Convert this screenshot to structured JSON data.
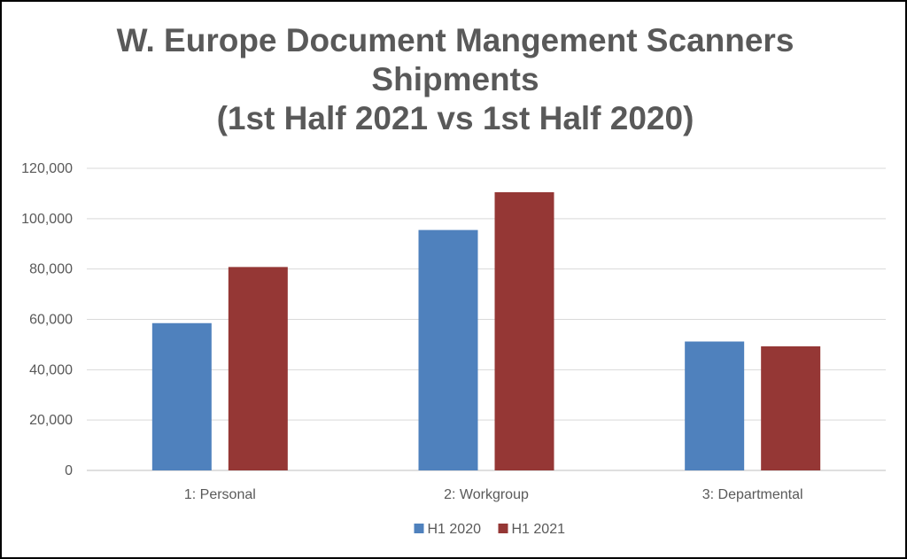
{
  "chart_data": {
    "type": "bar",
    "title_lines": [
      "W. Europe Document Mangement Scanners",
      "Shipments",
      "(1st Half 2021 vs 1st Half 2020)"
    ],
    "categories": [
      "1: Personal",
      "2: Workgroup",
      "3: Departmental"
    ],
    "series": [
      {
        "name": "H1 2020",
        "values": [
          58500,
          95500,
          51200
        ],
        "color": "#4F81BD"
      },
      {
        "name": "H1 2021",
        "values": [
          80800,
          110500,
          49300
        ],
        "color": "#953735"
      }
    ],
    "ylim": [
      0,
      120000
    ],
    "yticks": [
      "0",
      "20,000",
      "40,000",
      "60,000",
      "80,000",
      "100,000",
      "120,000"
    ],
    "ytick_values": [
      0,
      20000,
      40000,
      60000,
      80000,
      100000,
      120000
    ],
    "grid": true,
    "legend_position": "bottom",
    "xlabel": "",
    "ylabel": ""
  }
}
